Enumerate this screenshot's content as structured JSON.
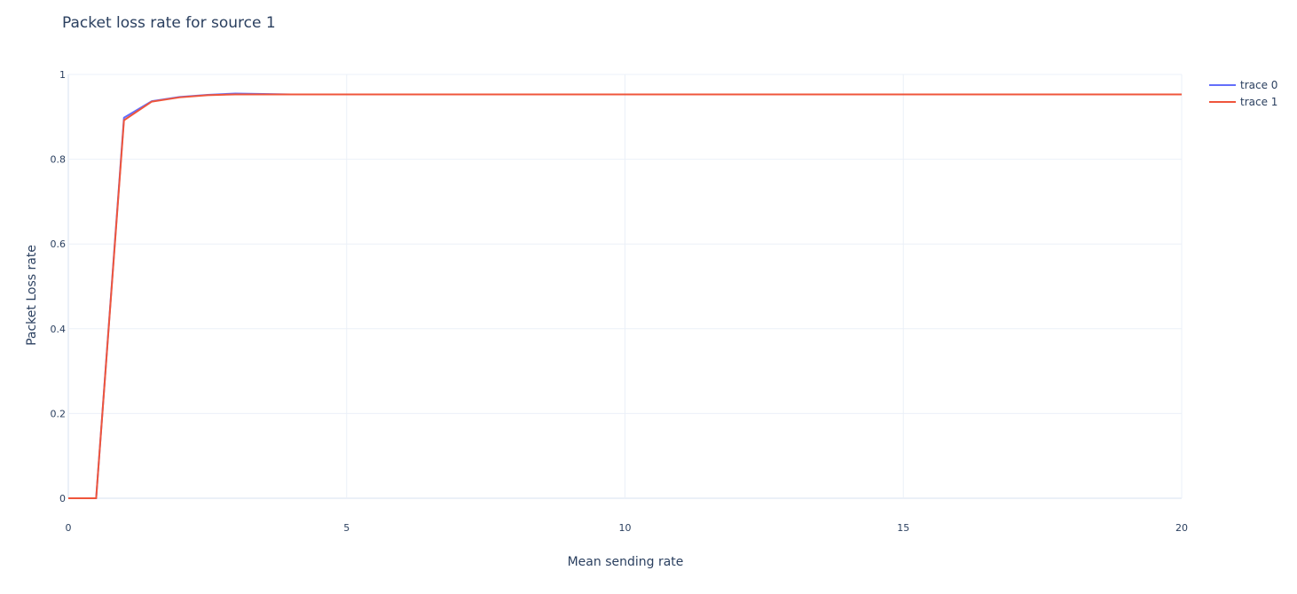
{
  "chart_data": {
    "type": "line",
    "title": "Packet loss rate for source 1",
    "xlabel": "Mean sending rate",
    "ylabel": "Packet Loss rate",
    "xlim": [
      0,
      20
    ],
    "ylim": [
      0,
      1
    ],
    "xticks": [
      0,
      5,
      10,
      15,
      20
    ],
    "yticks": [
      0,
      0.2,
      0.4,
      0.6,
      0.8,
      1
    ],
    "ytick_labels": [
      "0",
      "0.2",
      "0.4",
      "0.6",
      "0.8",
      "1"
    ],
    "grid": true,
    "legend": "top-right",
    "series": [
      {
        "name": "trace 0",
        "color": "#636efa",
        "x": [
          0,
          0.5,
          1,
          1.5,
          2,
          2.5,
          3,
          3.5,
          4,
          5,
          6,
          7,
          8,
          9,
          10,
          11,
          12,
          13,
          14,
          15,
          16,
          17,
          18,
          19,
          20
        ],
        "y": [
          0,
          0,
          0.898,
          0.937,
          0.947,
          0.952,
          0.955,
          0.954,
          0.953,
          0.953,
          0.953,
          0.953,
          0.953,
          0.953,
          0.953,
          0.953,
          0.953,
          0.953,
          0.953,
          0.953,
          0.953,
          0.953,
          0.953,
          0.953,
          0.953
        ]
      },
      {
        "name": "trace 1",
        "color": "#ef553b",
        "x": [
          0,
          0.5,
          1,
          1.5,
          2,
          2.5,
          3,
          3.5,
          4,
          5,
          6,
          7,
          8,
          9,
          10,
          11,
          12,
          13,
          14,
          15,
          16,
          17,
          18,
          19,
          20
        ],
        "y": [
          0,
          0,
          0.892,
          0.936,
          0.946,
          0.951,
          0.953,
          0.953,
          0.953,
          0.953,
          0.953,
          0.953,
          0.953,
          0.953,
          0.953,
          0.953,
          0.953,
          0.953,
          0.953,
          0.953,
          0.953,
          0.953,
          0.953,
          0.953,
          0.953
        ]
      }
    ]
  }
}
